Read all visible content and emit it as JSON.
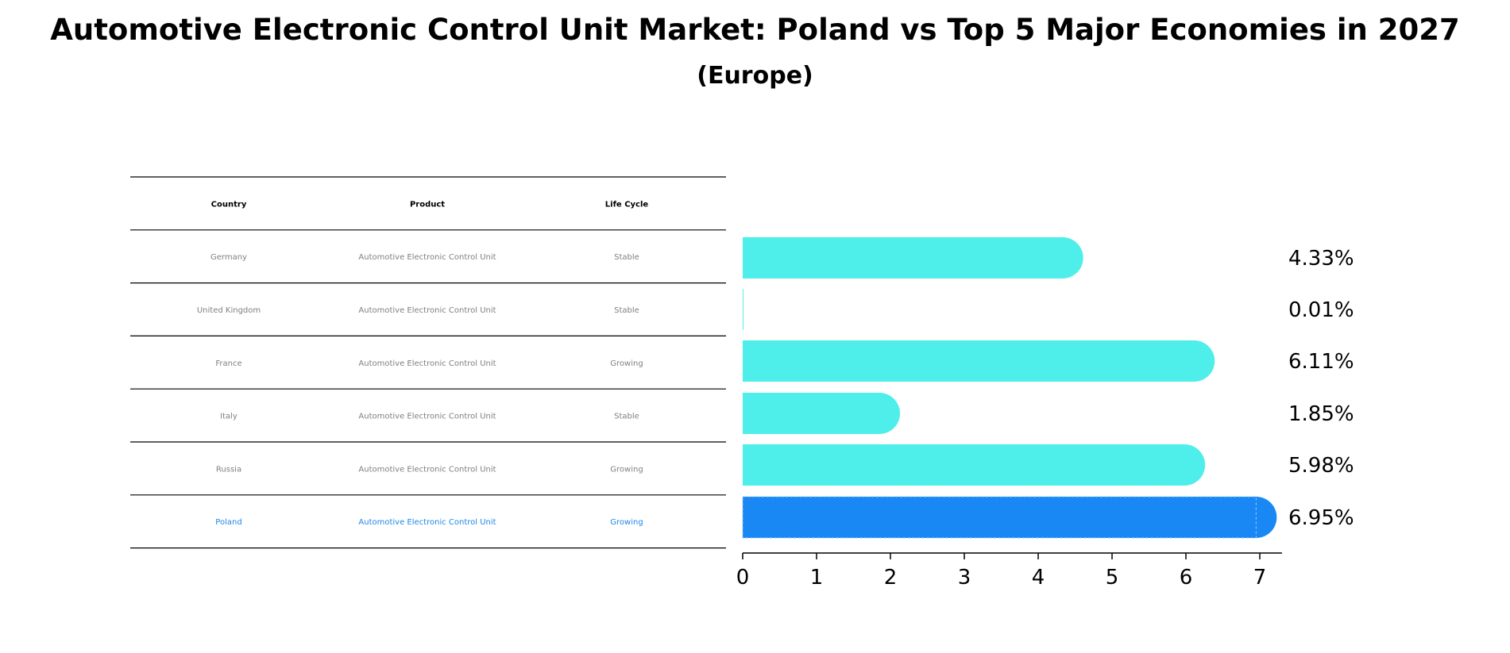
{
  "chart_data": {
    "type": "bar",
    "orientation": "horizontal",
    "title": "Automotive Electronic Control Unit Market: Poland vs Top 5 Major Economies in 2027",
    "subtitle": "(Europe)",
    "categories": [
      "Germany",
      "United Kingdom",
      "France",
      "Italy",
      "Russia",
      "Poland"
    ],
    "values": [
      4.33,
      0.01,
      6.11,
      1.85,
      5.98,
      6.95
    ],
    "value_labels": [
      "4.33%",
      "0.01%",
      "6.11%",
      "1.85%",
      "5.98%",
      "6.95%"
    ],
    "highlight": "Poland",
    "xlim": [
      0,
      7.3
    ],
    "xticks": [
      0,
      1,
      2,
      3,
      4,
      5,
      6,
      7
    ],
    "xlabel": "",
    "ylabel": "",
    "colors": {
      "bar": "#4eeeea",
      "highlight": "#1988f5",
      "highlight_text": "#1e88e5",
      "muted_text": "#808080"
    },
    "table": {
      "headers": [
        "Country",
        "Product",
        "Life Cycle"
      ],
      "rows": [
        [
          "Germany",
          "Automotive Electronic Control Unit",
          "Stable"
        ],
        [
          "United Kingdom",
          "Automotive Electronic Control Unit",
          "Stable"
        ],
        [
          "France",
          "Automotive Electronic Control Unit",
          "Growing"
        ],
        [
          "Italy",
          "Automotive Electronic Control Unit",
          "Stable"
        ],
        [
          "Russia",
          "Automotive Electronic Control Unit",
          "Growing"
        ],
        [
          "Poland",
          "Automotive Electronic Control Unit",
          "Growing"
        ]
      ]
    }
  }
}
